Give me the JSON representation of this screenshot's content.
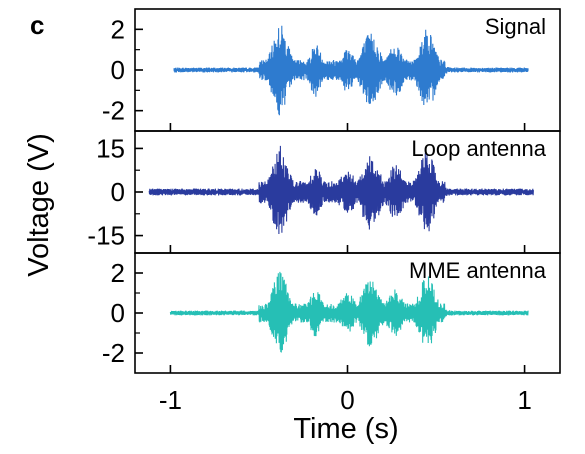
{
  "panel_letter": "c",
  "chart_data": {
    "type": "line",
    "xlabel": "Time (s)",
    "ylabel": "Voltage (V)",
    "xlim": [
      -1.2,
      1.2
    ],
    "xticks": [
      -1,
      0,
      1
    ],
    "xtick_labels": [
      "-1",
      "0",
      "1"
    ],
    "grid": false,
    "legend": "none",
    "envelope": {
      "signal_start": -0.5,
      "bursts": [
        {
          "center": -0.38,
          "width": 0.04,
          "weight": 1.0
        },
        {
          "center": -0.18,
          "width": 0.03,
          "weight": 0.55
        },
        {
          "center": 0.0,
          "width": 0.04,
          "weight": 0.45
        },
        {
          "center": 0.13,
          "width": 0.045,
          "weight": 0.8
        },
        {
          "center": 0.27,
          "width": 0.04,
          "weight": 0.55
        },
        {
          "center": 0.45,
          "width": 0.04,
          "weight": 0.9
        }
      ]
    },
    "panels": [
      {
        "title": "Signal",
        "color": "#2e7bcf",
        "ylim": [
          -3,
          3
        ],
        "yticks": [
          -2,
          0,
          2
        ],
        "ytick_labels": [
          "-2",
          "0",
          "2"
        ],
        "x_range": [
          -0.98,
          1.02
        ],
        "noise_amplitude": 0.12,
        "peak_amplitude": 2.3
      },
      {
        "title": "Loop antenna",
        "color": "#2a3b9e",
        "ylim": [
          -21,
          21
        ],
        "yticks": [
          -15,
          0,
          15
        ],
        "ytick_labels": [
          "-15",
          "0",
          "15"
        ],
        "x_range": [
          -1.12,
          1.05
        ],
        "noise_amplitude": 1.2,
        "peak_amplitude": 16
      },
      {
        "title": "MME antenna",
        "color": "#26bfb5",
        "ylim": [
          -3,
          3
        ],
        "yticks": [
          -2,
          0,
          2
        ],
        "ytick_labels": [
          "-2",
          "0",
          "2"
        ],
        "x_range": [
          -1.0,
          1.02
        ],
        "noise_amplitude": 0.12,
        "peak_amplitude": 2.1
      }
    ]
  }
}
